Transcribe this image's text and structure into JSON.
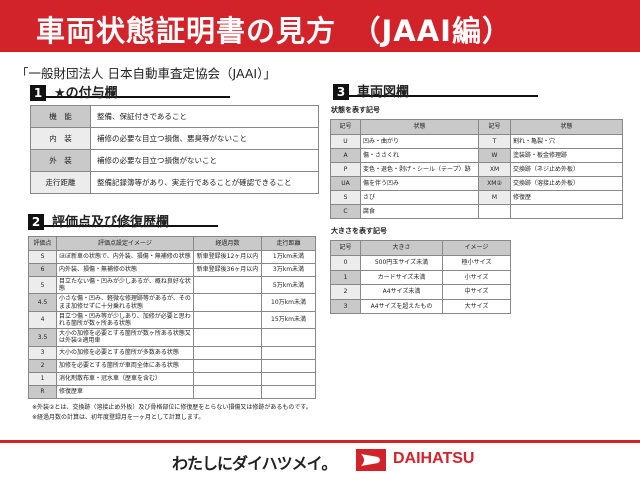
{
  "header": {
    "title": "車両状態証明書の見方　（JAAI編）"
  },
  "org": "「一般財団法人 日本自動車査定協会（JAAI）」",
  "section1": {
    "num": "1",
    "title": "★の付与欄",
    "rows": [
      {
        "label": "機　能",
        "text": "整備、保証付きであること"
      },
      {
        "label": "内　装",
        "text": "補修の必要な目立つ損傷、悪臭等がないこと"
      },
      {
        "label": "外　装",
        "text": "補修の必要な目立つ損傷がないこと"
      },
      {
        "label": "走行距離",
        "text": "整備記録簿等があり、実走行であることが確認できること"
      }
    ]
  },
  "section2": {
    "num": "2",
    "title": "評価点及び修復歴欄",
    "headers": [
      "評価点",
      "評価点設定イメージ",
      "経過月数",
      "走行距離"
    ],
    "rows": [
      [
        "S",
        "ほぼ新車の状態で、内外装、損傷・無補修の状態",
        "新車登録後12ヶ月以内",
        "1万km未満"
      ],
      [
        "6",
        "内外装、損傷・無補修の状態",
        "新車登録後36ヶ月以内",
        "3万km未満"
      ],
      [
        "5",
        "目立たない傷・凹みが少しあるが、概ね良好な状態",
        "",
        "5万km未満"
      ],
      [
        "4.5",
        "小さな傷・凹み、軽微な修理跡等があるが、そのまま加修せずに十分乗れる状態",
        "",
        "10万km未満"
      ],
      [
        "4",
        "目立つ傷・凹み等が少しあり、加修が必要と思われる箇所が数ヶ所ある状態",
        "",
        "15万km未満"
      ],
      [
        "3.5",
        "大小の加修を必要とする箇所が数ヶ所ある状態又は外装②適用車",
        "",
        ""
      ],
      [
        "3",
        "大小の加修を必要とする箇所が多数ある状態",
        "",
        ""
      ],
      [
        "2",
        "加修を必要とする箇所が車両全体にある状態",
        "",
        ""
      ],
      [
        "1",
        "消化剤散布車・冠水車（歴車を含む）",
        "",
        ""
      ],
      [
        "R",
        "修復歴車",
        "",
        ""
      ]
    ]
  },
  "section3": {
    "num": "3",
    "title": "車両図欄",
    "state_title": "状態を表す記号",
    "state_headers": [
      "記号",
      "状態",
      "記号",
      "状態"
    ],
    "state_rows": [
      [
        "U",
        "凹み・曲がり",
        "T",
        "割れ・亀裂・穴"
      ],
      [
        "A",
        "傷・ささくれ",
        "W",
        "塗装跡・板金修理跡"
      ],
      [
        "P",
        "変色・退色・剥げ・シール（テープ）跡",
        "XM",
        "交換跡（ネジ止め外板）"
      ],
      [
        "UA",
        "傷を伴う凹み",
        "XM②",
        "交換跡（溶接止め外板）"
      ],
      [
        "S",
        "さび",
        "M",
        "修復歴"
      ],
      [
        "C",
        "腐食",
        "",
        ""
      ]
    ],
    "size_title": "大きさを表す記号",
    "size_headers": [
      "記号",
      "大きさ",
      "イメージ"
    ],
    "size_rows": [
      [
        "0",
        "500円玉サイズ未満",
        "極小サイズ"
      ],
      [
        "1",
        "カードサイズ未満",
        "小サイズ"
      ],
      [
        "2",
        "A4サイズ未満",
        "中サイズ"
      ],
      [
        "3",
        "A4サイズを超えたもの",
        "大サイズ"
      ]
    ]
  },
  "notes": [
    "※外装②とは、交換跡（溶接止め外板）及び骨格部位に修復歴をとらない損傷又は修跡があるものです。",
    "※経過月数の計算は、初年度登録月を一ヶ月として計算します。"
  ],
  "footer": {
    "slogan": "わたしにダイハツメイ。",
    "brand": "DAIHATSU",
    "accent": "#d2232a"
  }
}
